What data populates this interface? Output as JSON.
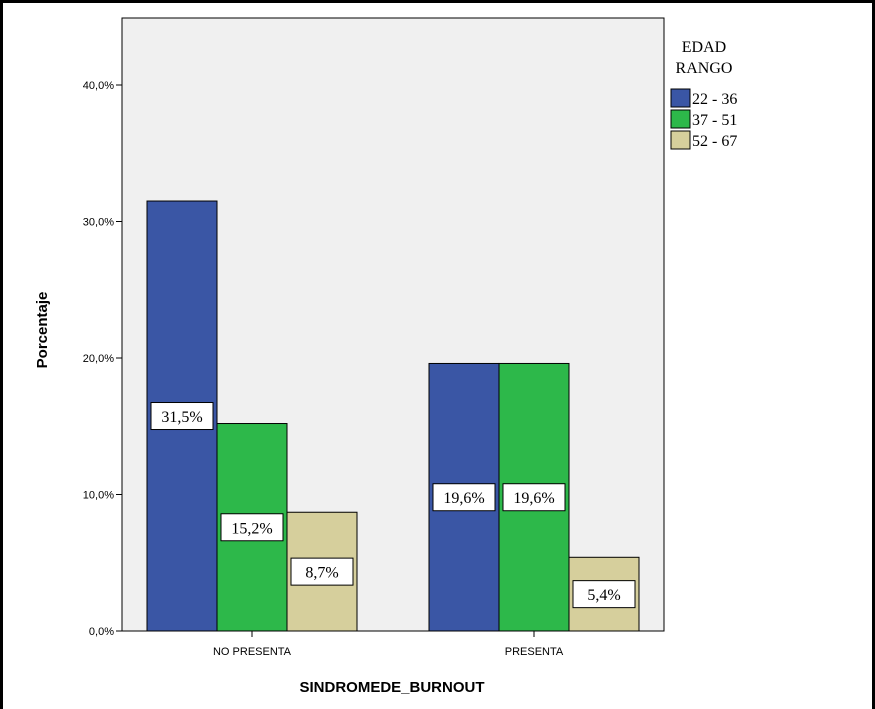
{
  "chart_data": {
    "type": "bar",
    "xlabel": "SINDROMEDE_BURNOUT",
    "ylabel": "Porcentaje",
    "categories": [
      "NO PRESENTA",
      "PRESENTA"
    ],
    "series": [
      {
        "name": "22 - 36",
        "values": [
          31.5,
          19.6
        ],
        "labels": [
          "31,5%",
          "19,6%"
        ],
        "color": "#3a56a5"
      },
      {
        "name": "37 - 51",
        "values": [
          15.2,
          19.6
        ],
        "labels": [
          "15,2%",
          "19,6%"
        ],
        "color": "#2db84a"
      },
      {
        "name": "52 - 67",
        "values": [
          8.7,
          5.4
        ],
        "labels": [
          "8,7%",
          "5,4%"
        ],
        "color": "#d6cf9c"
      }
    ],
    "ylim": [
      0,
      45
    ],
    "yticks": [
      0,
      10,
      20,
      30,
      40
    ],
    "ytick_labels": [
      "0,0%",
      "10,0%",
      "20,0%",
      "30,0%",
      "40,0%"
    ],
    "legend": {
      "title_lines": [
        "EDAD",
        "RANGO"
      ],
      "position": "top-right"
    },
    "plot_background": "#f0f0f0",
    "grid": false
  }
}
